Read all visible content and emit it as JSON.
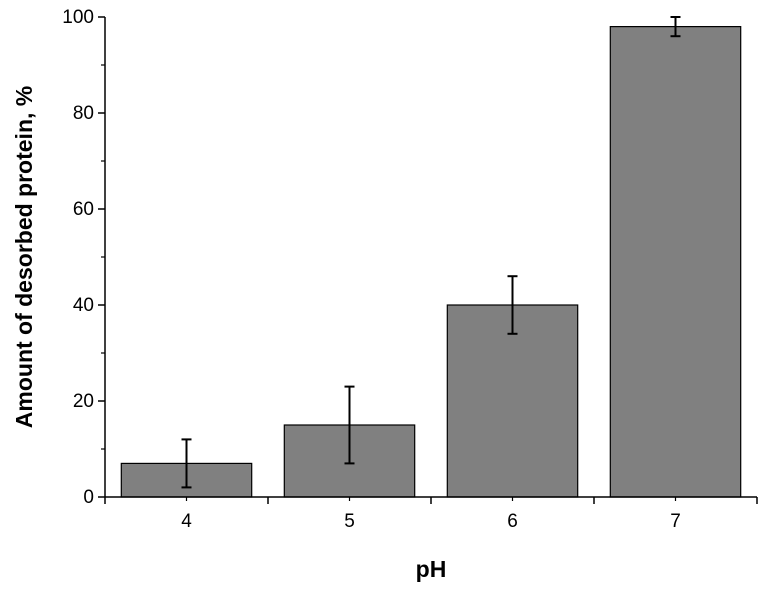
{
  "chart_data": {
    "type": "bar",
    "title": "",
    "xlabel": "pH",
    "ylabel": "Amount of desorbed protein, %",
    "categories": [
      "4",
      "5",
      "6",
      "7"
    ],
    "values": [
      7,
      15,
      40,
      98
    ],
    "error_bars": [
      {
        "low": 2,
        "high": 12
      },
      {
        "low": 7,
        "high": 23
      },
      {
        "low": 34,
        "high": 46
      },
      {
        "low": 96,
        "high": 100
      }
    ],
    "ylim": [
      0,
      100
    ],
    "yticks": [
      0,
      20,
      40,
      60,
      80,
      100
    ],
    "yticks_labels": [
      "0",
      "20",
      "40",
      "60",
      "80",
      "100"
    ],
    "grid": false,
    "legend": "none",
    "colors": {
      "bar_fill": "#808080",
      "bar_stroke": "#000000",
      "axis": "#000000"
    }
  }
}
